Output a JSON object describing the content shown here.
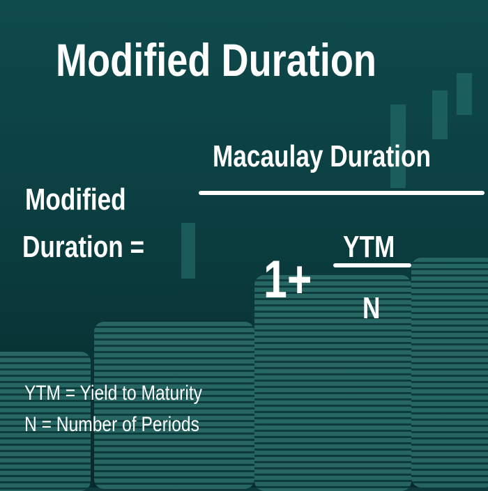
{
  "title": "Modified Duration",
  "formula": {
    "lhs_line1": "Modified",
    "lhs_line2": "Duration =",
    "numerator": "Macaulay Duration",
    "one_plus": "1+",
    "inner_numerator": "YTM",
    "inner_denominator": "N"
  },
  "legend": [
    "YTM = Yield to Maturity",
    "N = Number of Periods"
  ]
}
